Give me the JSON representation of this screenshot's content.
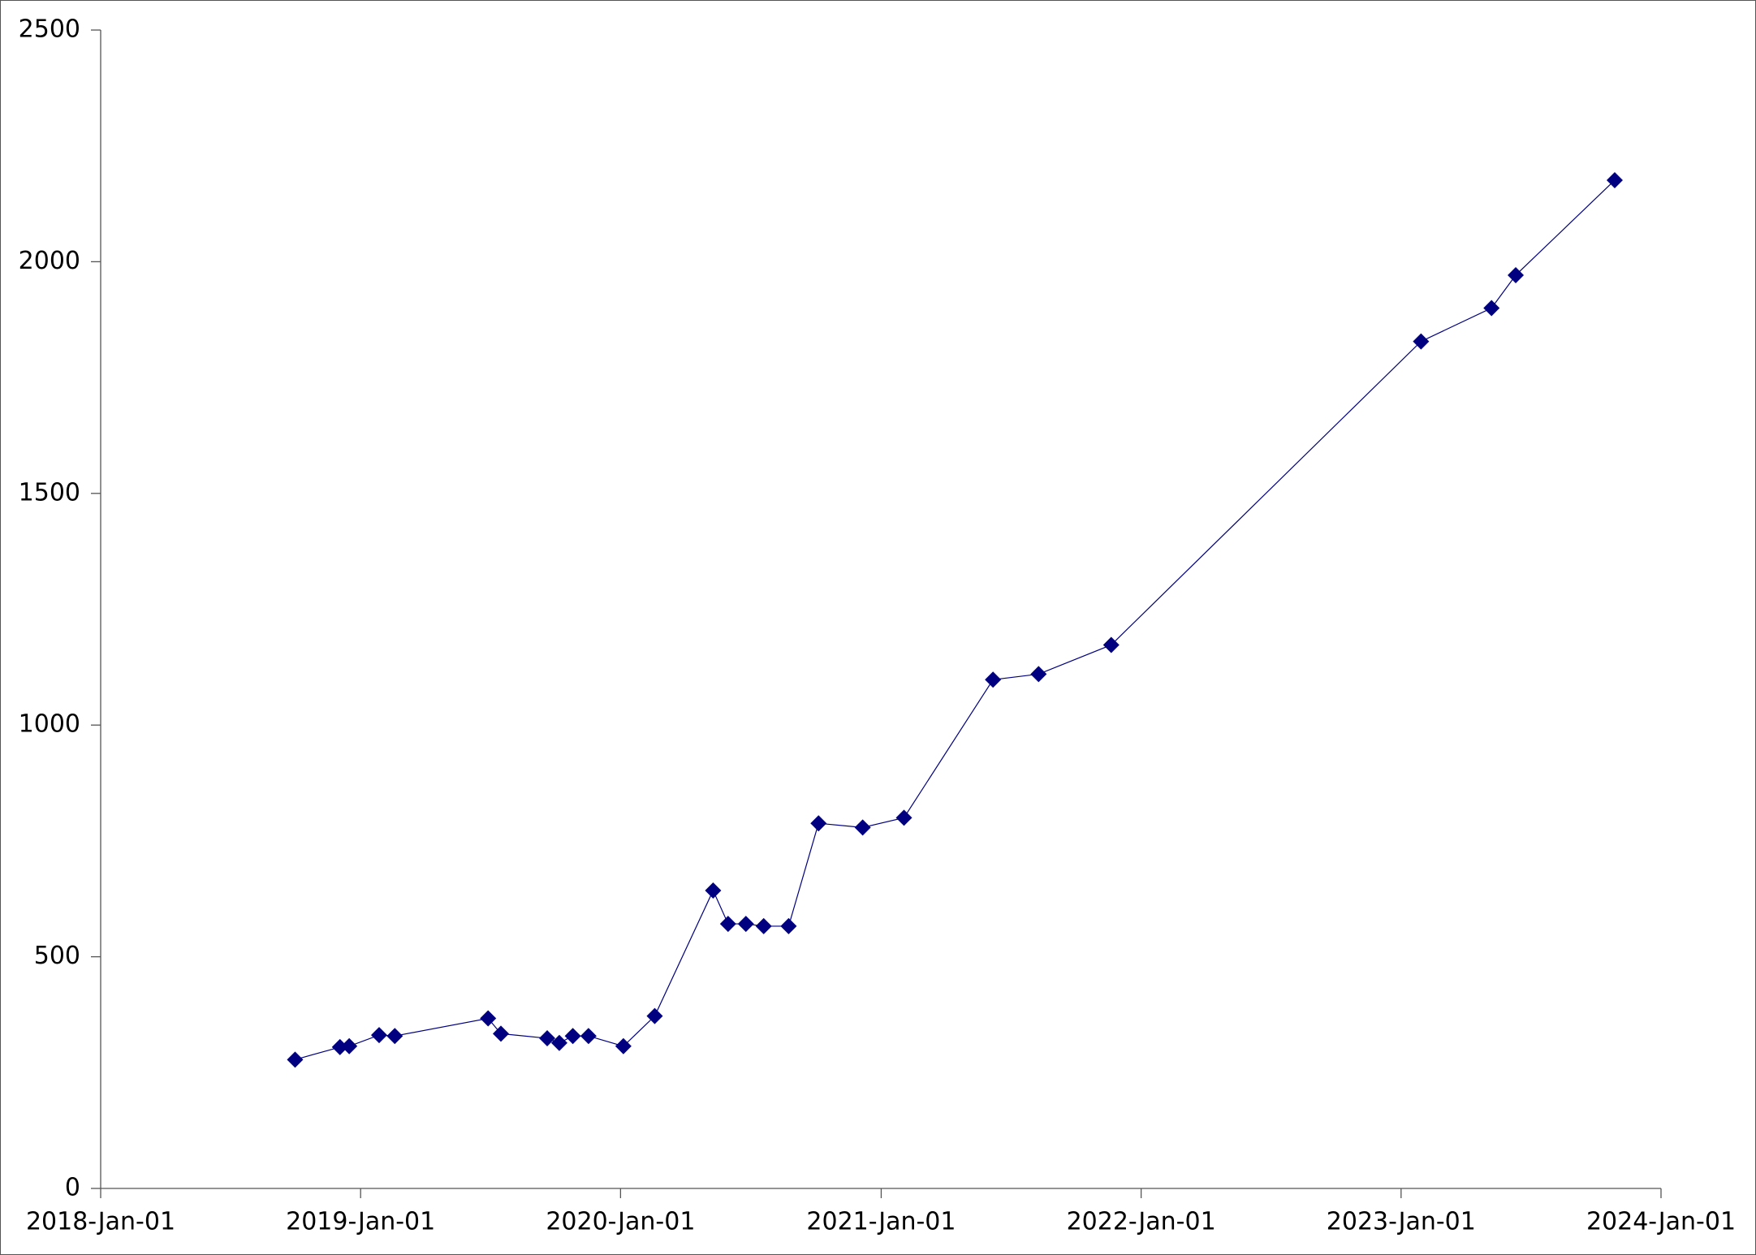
{
  "chart_data": {
    "type": "line",
    "x": [
      "2018-10-01",
      "2018-12-03",
      "2018-12-16",
      "2019-01-27",
      "2019-02-18",
      "2019-06-29",
      "2019-07-17",
      "2019-09-20",
      "2019-10-07",
      "2019-10-26",
      "2019-11-17",
      "2020-01-05",
      "2020-02-18",
      "2020-05-10",
      "2020-05-31",
      "2020-06-25",
      "2020-07-20",
      "2020-08-24",
      "2020-10-05",
      "2020-12-06",
      "2021-02-02",
      "2021-06-07",
      "2021-08-10",
      "2021-11-20",
      "2023-01-29",
      "2023-05-08",
      "2023-06-11",
      "2023-10-28"
    ],
    "series": [
      {
        "color": "#000080",
        "values": [
          278,
          305,
          307,
          331,
          329,
          367,
          334,
          324,
          314,
          329,
          329,
          307,
          372,
          643,
          571,
          571,
          566,
          566,
          788,
          779,
          800,
          1098,
          1110,
          1173,
          1828,
          1900,
          1971,
          2176
        ]
      }
    ],
    "xlim": [
      "2018-01-01",
      "2024-01-01"
    ],
    "xticks": [
      {
        "value": "2018-01-01",
        "label": "2018-Jan-01"
      },
      {
        "value": "2019-01-01",
        "label": "2019-Jan-01"
      },
      {
        "value": "2020-01-01",
        "label": "2020-Jan-01"
      },
      {
        "value": "2021-01-01",
        "label": "2021-Jan-01"
      },
      {
        "value": "2022-01-01",
        "label": "2022-Jan-01"
      },
      {
        "value": "2023-01-01",
        "label": "2023-Jan-01"
      },
      {
        "value": "2024-01-01",
        "label": "2024-Jan-01"
      }
    ],
    "ylim": [
      0,
      2500
    ],
    "yticks": [
      0,
      500,
      1000,
      1500,
      2000,
      2500
    ],
    "grid": false
  }
}
